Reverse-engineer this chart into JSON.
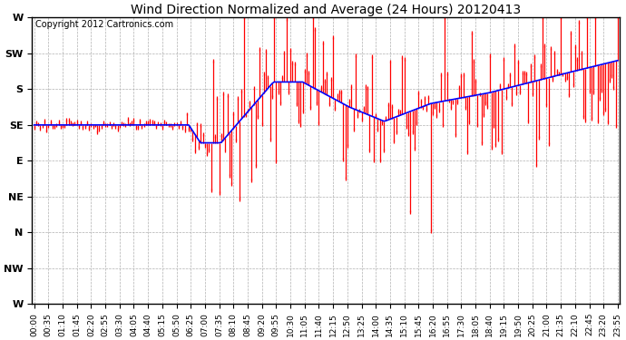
{
  "title": "Wind Direction Normalized and Average (24 Hours) 20120413",
  "copyright_text": "Copyright 2012 Cartronics.com",
  "y_tick_positions": [
    0,
    1,
    2,
    3,
    4,
    5,
    6,
    7,
    8
  ],
  "y_tick_labels": [
    "W",
    "NW",
    "N",
    "NE",
    "E",
    "SE",
    "S",
    "SW",
    "W"
  ],
  "x_tick_labels": [
    "00:00",
    "00:35",
    "01:10",
    "01:45",
    "02:20",
    "02:55",
    "03:30",
    "04:05",
    "04:40",
    "05:15",
    "05:50",
    "06:25",
    "07:00",
    "07:35",
    "08:10",
    "08:45",
    "09:20",
    "09:55",
    "10:30",
    "11:05",
    "11:40",
    "12:15",
    "12:50",
    "13:25",
    "14:00",
    "14:35",
    "15:10",
    "15:45",
    "16:20",
    "16:55",
    "17:30",
    "18:05",
    "18:40",
    "19:15",
    "19:50",
    "20:25",
    "21:00",
    "21:35",
    "22:10",
    "22:45",
    "23:20",
    "23:55"
  ],
  "background_color": "#ffffff",
  "grid_color": "#b0b0b0",
  "title_fontsize": 10,
  "copyright_fontsize": 7,
  "tick_label_fontsize": 6.5,
  "y_label_fontsize": 8
}
